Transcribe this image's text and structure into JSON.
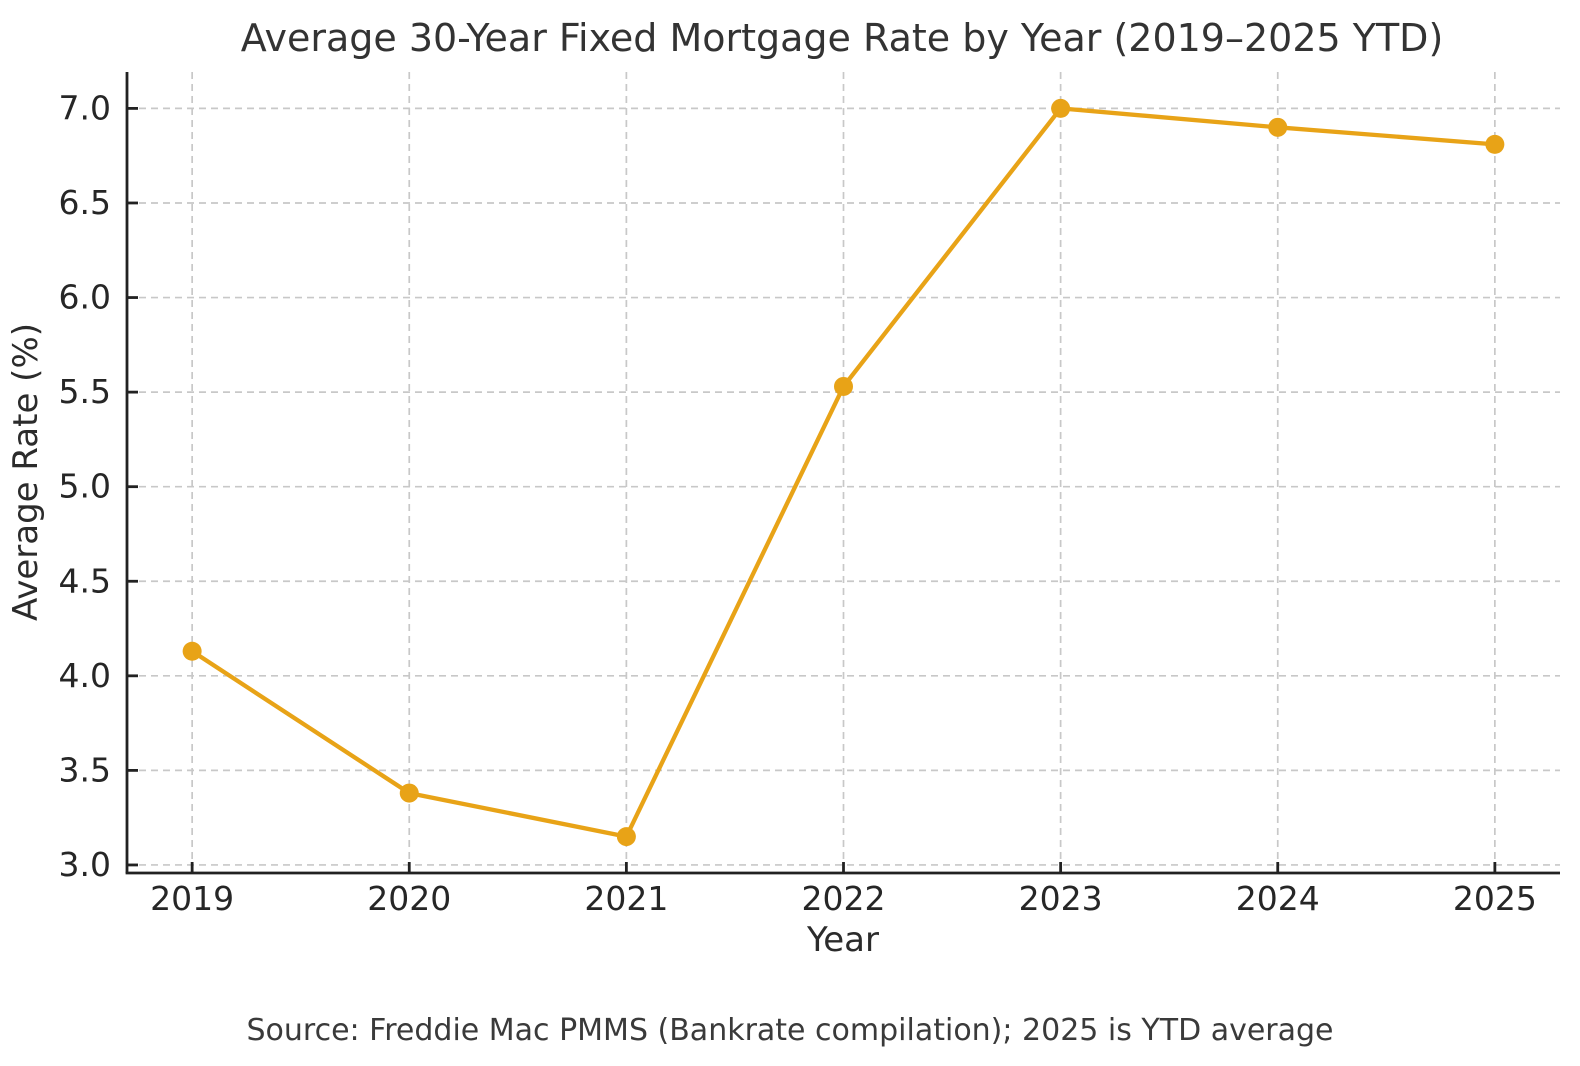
{
  "chart_data": {
    "type": "line",
    "title": "Average 30-Year Fixed Mortgage Rate by Year (2019–2025 YTD)",
    "xlabel": "Year",
    "ylabel": "Average Rate (%)",
    "x": [
      2019,
      2020,
      2021,
      2022,
      2023,
      2024,
      2025
    ],
    "series": [
      {
        "name": "average-30-year-fixed-rate",
        "values": [
          4.13,
          3.38,
          3.15,
          5.53,
          7.0,
          6.9,
          6.81
        ]
      }
    ],
    "xtick_labels": [
      "2019",
      "2020",
      "2021",
      "2022",
      "2023",
      "2024",
      "2025"
    ],
    "ytick_values": [
      3.0,
      3.5,
      4.0,
      4.5,
      5.0,
      5.5,
      6.0,
      6.5,
      7.0
    ],
    "ytick_labels": [
      "3.0",
      "3.5",
      "4.0",
      "4.5",
      "5.0",
      "5.5",
      "6.0",
      "6.5",
      "7.0"
    ],
    "xlim": [
      2018.7,
      2025.3
    ],
    "ylim": [
      2.9575,
      7.1925
    ],
    "grid": true,
    "legend": "none",
    "marker": "circle",
    "source_note": "Source: Freddie Mac PMMS (Bankrate compilation); 2025 is YTD average"
  },
  "colors": {
    "line": "#E8A317",
    "grid": "#c8c8c8",
    "spine": "#222222",
    "tick": "#222222",
    "title_text": "#333333",
    "tick_text": "#262626",
    "label_text": "#2b2b2b",
    "source_text": "#3a3a3a",
    "background": "#ffffff"
  }
}
